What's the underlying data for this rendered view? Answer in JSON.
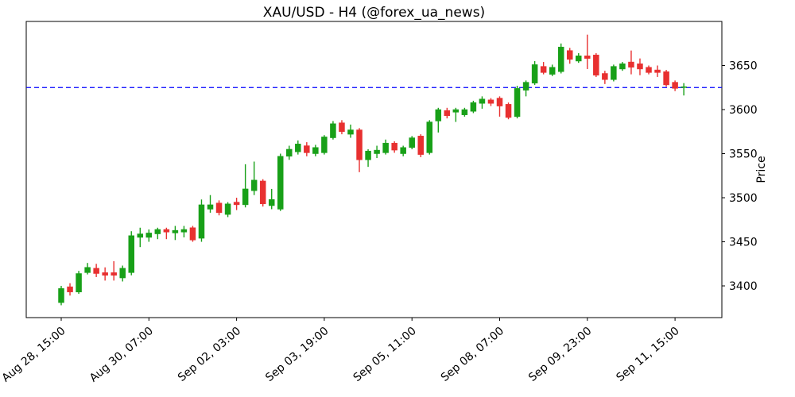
{
  "title": "XAU/USD - H4 (@forex_ua_news)",
  "chart_data": {
    "type": "candlestick",
    "symbol": "XAU/USD",
    "timeframe": "H4",
    "source_handle": "@forex_ua_news",
    "ylabel_right": "Price",
    "y_ticks": [
      3400,
      3450,
      3500,
      3550,
      3600,
      3650
    ],
    "ylim": [
      3364,
      3700
    ],
    "x_tick_labels": [
      "Aug 28, 15:00",
      "Aug 30, 07:00",
      "Sep 02, 03:00",
      "Sep 03, 19:00",
      "Sep 05, 11:00",
      "Sep 08, 07:00",
      "Sep 09, 23:00",
      "Sep 11, 15:00"
    ],
    "x_tick_indices": [
      0,
      10,
      20,
      30,
      40,
      50,
      60,
      70
    ],
    "hline": {
      "price": 3625,
      "color": "#0000ff",
      "style": "dashed"
    },
    "up_color": "#18a018",
    "down_color": "#e83030",
    "axis_color": "#000000",
    "background_color": "#ffffff",
    "candles_ohlc": [
      [
        3381,
        3400,
        3378,
        3397
      ],
      [
        3399,
        3403,
        3389,
        3393
      ],
      [
        3393,
        3417,
        3391,
        3414
      ],
      [
        3415,
        3426,
        3413,
        3421
      ],
      [
        3420,
        3425,
        3410,
        3414
      ],
      [
        3415,
        3421,
        3406,
        3412
      ],
      [
        3415,
        3428,
        3406,
        3412
      ],
      [
        3409,
        3423,
        3405,
        3420
      ],
      [
        3415,
        3462,
        3412,
        3457
      ],
      [
        3455,
        3466,
        3444,
        3459
      ],
      [
        3455,
        3464,
        3450,
        3460
      ],
      [
        3459,
        3466,
        3453,
        3464
      ],
      [
        3464,
        3466,
        3453,
        3461
      ],
      [
        3460,
        3468,
        3452,
        3463
      ],
      [
        3461,
        3468,
        3455,
        3464
      ],
      [
        3466,
        3468,
        3450,
        3452
      ],
      [
        3454,
        3498,
        3450,
        3492
      ],
      [
        3487,
        3503,
        3483,
        3492
      ],
      [
        3494,
        3497,
        3480,
        3483
      ],
      [
        3481,
        3495,
        3478,
        3493
      ],
      [
        3495,
        3500,
        3486,
        3492
      ],
      [
        3492,
        3538,
        3489,
        3510
      ],
      [
        3508,
        3541,
        3503,
        3520
      ],
      [
        3519,
        3521,
        3490,
        3493
      ],
      [
        3491,
        3510,
        3487,
        3498
      ],
      [
        3487,
        3550,
        3485,
        3547
      ],
      [
        3547,
        3559,
        3543,
        3555
      ],
      [
        3552,
        3565,
        3549,
        3561
      ],
      [
        3559,
        3563,
        3547,
        3551
      ],
      [
        3550,
        3560,
        3547,
        3557
      ],
      [
        3551,
        3571,
        3549,
        3569
      ],
      [
        3568,
        3587,
        3566,
        3584
      ],
      [
        3585,
        3588,
        3572,
        3575
      ],
      [
        3572,
        3583,
        3568,
        3577
      ],
      [
        3577,
        3579,
        3529,
        3543
      ],
      [
        3543,
        3555,
        3535,
        3553
      ],
      [
        3550,
        3559,
        3545,
        3554
      ],
      [
        3551,
        3566,
        3549,
        3562
      ],
      [
        3562,
        3564,
        3551,
        3554
      ],
      [
        3550,
        3559,
        3547,
        3557
      ],
      [
        3557,
        3570,
        3555,
        3568
      ],
      [
        3570,
        3572,
        3546,
        3549
      ],
      [
        3551,
        3588,
        3549,
        3586
      ],
      [
        3587,
        3602,
        3574,
        3600
      ],
      [
        3599,
        3602,
        3590,
        3593
      ],
      [
        3597,
        3602,
        3586,
        3600
      ],
      [
        3594,
        3602,
        3592,
        3600
      ],
      [
        3598,
        3610,
        3596,
        3608
      ],
      [
        3607,
        3615,
        3601,
        3612
      ],
      [
        3611,
        3613,
        3604,
        3607
      ],
      [
        3613,
        3615,
        3592,
        3604
      ],
      [
        3606,
        3608,
        3589,
        3591
      ],
      [
        3592,
        3627,
        3590,
        3624
      ],
      [
        3622,
        3633,
        3615,
        3631
      ],
      [
        3630,
        3655,
        3628,
        3651
      ],
      [
        3649,
        3654,
        3640,
        3642
      ],
      [
        3640,
        3651,
        3638,
        3648
      ],
      [
        3643,
        3675,
        3641,
        3671
      ],
      [
        3667,
        3670,
        3652,
        3657
      ],
      [
        3655,
        3664,
        3653,
        3661
      ],
      [
        3661,
        3685,
        3646,
        3658
      ],
      [
        3662,
        3664,
        3637,
        3639
      ],
      [
        3641,
        3644,
        3629,
        3634
      ],
      [
        3634,
        3651,
        3632,
        3649
      ],
      [
        3646,
        3654,
        3644,
        3652
      ],
      [
        3654,
        3667,
        3640,
        3648
      ],
      [
        3652,
        3658,
        3639,
        3646
      ],
      [
        3648,
        3650,
        3640,
        3642
      ],
      [
        3645,
        3650,
        3637,
        3642
      ],
      [
        3643,
        3645,
        3626,
        3628
      ],
      [
        3631,
        3633,
        3621,
        3624
      ],
      [
        3625,
        3630,
        3616,
        3626
      ]
    ]
  }
}
